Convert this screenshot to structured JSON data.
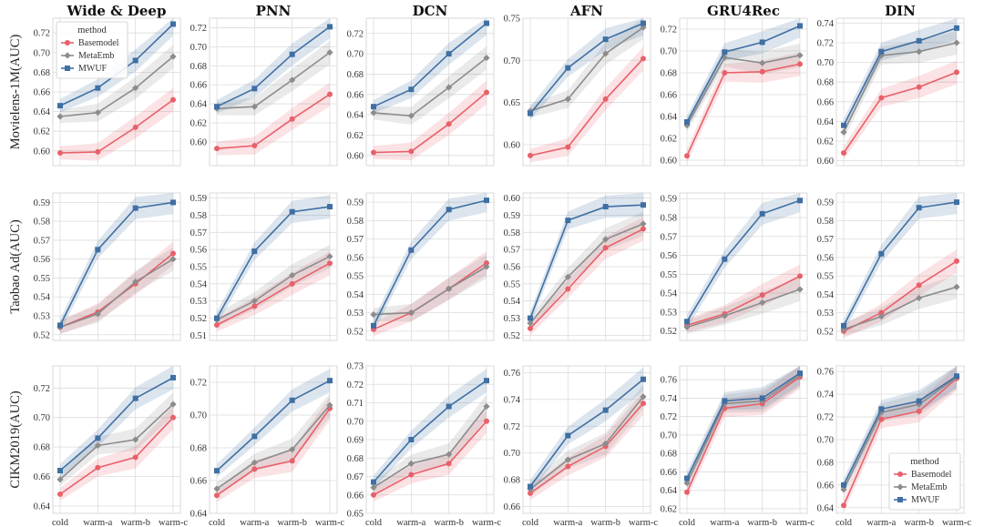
{
  "chart_data": {
    "type": "line",
    "grid_rows": 3,
    "grid_cols": 6,
    "column_titles": [
      "Wide & Deep",
      "PNN",
      "DCN",
      "AFN",
      "GRU4Rec",
      "DIN"
    ],
    "row_labels": [
      "Movielens-1M(AUC)",
      "Taobao Ad(AUC)",
      "CIKM2019(AUC)"
    ],
    "categories": [
      "cold",
      "warm-a",
      "warm-b",
      "warm-c"
    ],
    "series_names": [
      "Basemodel",
      "MetaEmb",
      "MWUF"
    ],
    "colors": {
      "Basemodel": "#e8606a",
      "MetaEmb": "#8c8c8c",
      "MWUF": "#3f6fa3"
    },
    "legend": {
      "title": "method",
      "labels": [
        "Basemodel",
        "MetaEmb",
        "MWUF"
      ]
    },
    "panels": [
      {
        "row": 0,
        "col": 0,
        "ylim": [
          0.585,
          0.735
        ],
        "yticks": [
          0.6,
          0.62,
          0.64,
          0.66,
          0.68,
          0.7,
          0.72
        ],
        "show_legend": true,
        "legend_position": "top-left",
        "series": {
          "Basemodel": [
            0.598,
            0.599,
            0.624,
            0.652
          ],
          "MetaEmb": [
            0.635,
            0.639,
            0.664,
            0.696
          ],
          "MWUF": [
            0.646,
            0.664,
            0.692,
            0.729
          ]
        }
      },
      {
        "row": 0,
        "col": 1,
        "ylim": [
          0.575,
          0.73
        ],
        "yticks": [
          0.6,
          0.62,
          0.64,
          0.66,
          0.68,
          0.7,
          0.72
        ],
        "series": {
          "Basemodel": [
            0.593,
            0.596,
            0.624,
            0.65
          ],
          "MetaEmb": [
            0.635,
            0.637,
            0.665,
            0.694
          ],
          "MWUF": [
            0.637,
            0.656,
            0.692,
            0.721
          ]
        }
      },
      {
        "row": 0,
        "col": 2,
        "ylim": [
          0.59,
          0.735
        ],
        "yticks": [
          0.6,
          0.62,
          0.64,
          0.66,
          0.68,
          0.7,
          0.72
        ],
        "series": {
          "Basemodel": [
            0.603,
            0.604,
            0.631,
            0.662
          ],
          "MetaEmb": [
            0.642,
            0.639,
            0.667,
            0.696
          ],
          "MWUF": [
            0.648,
            0.665,
            0.7,
            0.73
          ]
        }
      },
      {
        "row": 0,
        "col": 3,
        "ylim": [
          0.575,
          0.75
        ],
        "yticks": [
          0.6,
          0.65,
          0.7,
          0.75
        ],
        "series": {
          "Basemodel": [
            0.587,
            0.597,
            0.654,
            0.702
          ],
          "MetaEmb": [
            0.64,
            0.654,
            0.708,
            0.739
          ],
          "MWUF": [
            0.637,
            0.691,
            0.725,
            0.744
          ]
        }
      },
      {
        "row": 0,
        "col": 4,
        "ylim": [
          0.595,
          0.73
        ],
        "yticks": [
          0.6,
          0.62,
          0.64,
          0.66,
          0.68,
          0.7,
          0.72
        ],
        "series": {
          "Basemodel": [
            0.604,
            0.68,
            0.681,
            0.688
          ],
          "MetaEmb": [
            0.632,
            0.694,
            0.689,
            0.696
          ],
          "MWUF": [
            0.635,
            0.699,
            0.708,
            0.723
          ]
        }
      },
      {
        "row": 0,
        "col": 5,
        "ylim": [
          0.595,
          0.745
        ],
        "yticks": [
          0.6,
          0.62,
          0.64,
          0.66,
          0.68,
          0.7,
          0.72,
          0.74
        ],
        "series": {
          "Basemodel": [
            0.608,
            0.664,
            0.675,
            0.69
          ],
          "MetaEmb": [
            0.629,
            0.707,
            0.711,
            0.72
          ],
          "MWUF": [
            0.636,
            0.711,
            0.722,
            0.735
          ]
        }
      },
      {
        "row": 1,
        "col": 0,
        "ylim": [
          0.517,
          0.595
        ],
        "yticks": [
          0.52,
          0.53,
          0.54,
          0.55,
          0.56,
          0.57,
          0.58,
          0.59
        ],
        "series": {
          "Basemodel": [
            0.524,
            0.532,
            0.547,
            0.563
          ],
          "MetaEmb": [
            0.524,
            0.531,
            0.548,
            0.56
          ],
          "MWUF": [
            0.525,
            0.565,
            0.587,
            0.59
          ]
        }
      },
      {
        "row": 1,
        "col": 1,
        "ylim": [
          0.507,
          0.593
        ],
        "yticks": [
          0.51,
          0.52,
          0.53,
          0.54,
          0.55,
          0.56,
          0.57,
          0.58,
          0.59
        ],
        "series": {
          "Basemodel": [
            0.516,
            0.527,
            0.54,
            0.552
          ],
          "MetaEmb": [
            0.519,
            0.53,
            0.545,
            0.556
          ],
          "MWUF": [
            0.52,
            0.559,
            0.582,
            0.585
          ]
        }
      },
      {
        "row": 1,
        "col": 2,
        "ylim": [
          0.515,
          0.595
        ],
        "yticks": [
          0.52,
          0.53,
          0.54,
          0.55,
          0.56,
          0.57,
          0.58,
          0.59
        ],
        "series": {
          "Basemodel": [
            0.521,
            0.53,
            0.543,
            0.557
          ],
          "MetaEmb": [
            0.529,
            0.53,
            0.543,
            0.555
          ],
          "MWUF": [
            0.523,
            0.564,
            0.586,
            0.591
          ]
        }
      },
      {
        "row": 1,
        "col": 3,
        "ylim": [
          0.517,
          0.603
        ],
        "yticks": [
          0.52,
          0.53,
          0.54,
          0.55,
          0.56,
          0.57,
          0.58,
          0.59,
          0.6
        ],
        "series": {
          "Basemodel": [
            0.524,
            0.547,
            0.571,
            0.582
          ],
          "MetaEmb": [
            0.527,
            0.554,
            0.576,
            0.585
          ],
          "MWUF": [
            0.53,
            0.587,
            0.595,
            0.596
          ]
        }
      },
      {
        "row": 1,
        "col": 4,
        "ylim": [
          0.515,
          0.593
        ],
        "yticks": [
          0.52,
          0.53,
          0.54,
          0.55,
          0.56,
          0.57,
          0.58,
          0.59
        ],
        "series": {
          "Basemodel": [
            0.523,
            0.529,
            0.539,
            0.549
          ],
          "MetaEmb": [
            0.522,
            0.528,
            0.535,
            0.542
          ],
          "MWUF": [
            0.525,
            0.558,
            0.582,
            0.589
          ]
        }
      },
      {
        "row": 1,
        "col": 5,
        "ylim": [
          0.515,
          0.595
        ],
        "yticks": [
          0.52,
          0.53,
          0.54,
          0.55,
          0.56,
          0.57,
          0.58,
          0.59
        ],
        "series": {
          "Basemodel": [
            0.52,
            0.53,
            0.545,
            0.558
          ],
          "MetaEmb": [
            0.521,
            0.528,
            0.538,
            0.544
          ],
          "MWUF": [
            0.523,
            0.562,
            0.587,
            0.59
          ]
        }
      },
      {
        "row": 2,
        "col": 0,
        "ylim": [
          0.635,
          0.735
        ],
        "yticks": [
          0.64,
          0.66,
          0.68,
          0.7,
          0.72
        ],
        "series": {
          "Basemodel": [
            0.648,
            0.666,
            0.673,
            0.7
          ],
          "MetaEmb": [
            0.658,
            0.681,
            0.685,
            0.709
          ],
          "MWUF": [
            0.664,
            0.686,
            0.713,
            0.727
          ]
        }
      },
      {
        "row": 2,
        "col": 1,
        "ylim": [
          0.64,
          0.73
        ],
        "yticks": [
          0.64,
          0.66,
          0.68,
          0.7,
          0.72
        ],
        "series": {
          "Basemodel": [
            0.651,
            0.667,
            0.672,
            0.704
          ],
          "MetaEmb": [
            0.655,
            0.671,
            0.679,
            0.706
          ],
          "MWUF": [
            0.666,
            0.687,
            0.709,
            0.721
          ]
        }
      },
      {
        "row": 2,
        "col": 2,
        "ylim": [
          0.65,
          0.73
        ],
        "yticks": [
          0.65,
          0.66,
          0.67,
          0.68,
          0.69,
          0.7,
          0.71,
          0.72,
          0.73
        ],
        "series": {
          "Basemodel": [
            0.66,
            0.671,
            0.677,
            0.7
          ],
          "MetaEmb": [
            0.664,
            0.677,
            0.682,
            0.708
          ],
          "MWUF": [
            0.667,
            0.69,
            0.708,
            0.722
          ]
        }
      },
      {
        "row": 2,
        "col": 3,
        "ylim": [
          0.655,
          0.765
        ],
        "yticks": [
          0.66,
          0.68,
          0.7,
          0.72,
          0.74,
          0.76
        ],
        "series": {
          "Basemodel": [
            0.67,
            0.69,
            0.705,
            0.737
          ],
          "MetaEmb": [
            0.673,
            0.695,
            0.707,
            0.742
          ],
          "MWUF": [
            0.675,
            0.713,
            0.732,
            0.755
          ]
        }
      },
      {
        "row": 2,
        "col": 4,
        "ylim": [
          0.615,
          0.775
        ],
        "yticks": [
          0.62,
          0.64,
          0.66,
          0.68,
          0.7,
          0.72,
          0.74,
          0.76
        ],
        "series": {
          "Basemodel": [
            0.638,
            0.729,
            0.734,
            0.763
          ],
          "MetaEmb": [
            0.648,
            0.734,
            0.737,
            0.765
          ],
          "MWUF": [
            0.653,
            0.737,
            0.74,
            0.767
          ]
        }
      },
      {
        "row": 2,
        "col": 5,
        "ylim": [
          0.635,
          0.765
        ],
        "yticks": [
          0.64,
          0.66,
          0.68,
          0.7,
          0.72,
          0.74,
          0.76
        ],
        "show_legend": true,
        "legend_position": "bottom-right",
        "series": {
          "Basemodel": [
            0.642,
            0.718,
            0.725,
            0.754
          ],
          "MetaEmb": [
            0.656,
            0.724,
            0.731,
            0.755
          ],
          "MWUF": [
            0.66,
            0.727,
            0.734,
            0.756
          ]
        }
      }
    ]
  }
}
